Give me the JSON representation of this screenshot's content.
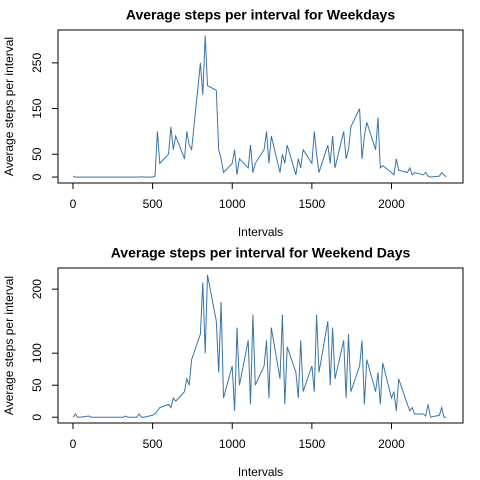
{
  "chart_data": [
    {
      "type": "line",
      "title": "Average steps per interval for Weekdays",
      "xlabel": "Intervals",
      "ylabel": "Average steps per interval",
      "color": "#3a75a8",
      "x": [
        0,
        15,
        30,
        45,
        100,
        115,
        130,
        145,
        200,
        215,
        230,
        245,
        300,
        315,
        330,
        345,
        400,
        415,
        430,
        445,
        500,
        515,
        530,
        545,
        600,
        615,
        630,
        645,
        700,
        715,
        730,
        745,
        800,
        815,
        830,
        845,
        900,
        915,
        930,
        945,
        1000,
        1015,
        1030,
        1045,
        1100,
        1115,
        1130,
        1145,
        1200,
        1215,
        1230,
        1245,
        1300,
        1315,
        1330,
        1345,
        1400,
        1415,
        1430,
        1445,
        1500,
        1515,
        1530,
        1545,
        1600,
        1615,
        1630,
        1645,
        1700,
        1715,
        1730,
        1745,
        1800,
        1815,
        1830,
        1845,
        1900,
        1915,
        1930,
        1945,
        2000,
        2015,
        2030,
        2045,
        2100,
        2115,
        2130,
        2145,
        2200,
        2215,
        2230,
        2245,
        2300,
        2315,
        2330,
        2345
      ],
      "values": [
        2,
        0,
        0,
        0,
        0,
        0,
        0,
        0,
        0,
        0,
        0,
        0,
        0,
        0,
        0,
        0,
        0,
        0,
        1,
        0,
        0,
        2,
        100,
        30,
        50,
        110,
        60,
        90,
        40,
        100,
        70,
        60,
        250,
        180,
        310,
        200,
        190,
        60,
        40,
        10,
        30,
        60,
        5,
        40,
        20,
        70,
        10,
        30,
        60,
        100,
        30,
        90,
        10,
        50,
        30,
        70,
        5,
        40,
        20,
        60,
        30,
        100,
        50,
        10,
        70,
        30,
        90,
        20,
        100,
        40,
        60,
        110,
        150,
        40,
        90,
        120,
        60,
        130,
        20,
        25,
        10,
        5,
        40,
        15,
        10,
        20,
        5,
        10,
        5,
        10,
        2,
        0,
        2,
        10,
        5,
        0
      ],
      "xlim": [
        -94,
        2449
      ],
      "xticks": [
        0,
        500,
        1000,
        1500,
        2000
      ],
      "ylim": [
        -13,
        322
      ],
      "yticks": [
        0,
        50,
        150,
        250
      ]
    },
    {
      "type": "line",
      "title": "Average steps per interval for Weekend Days",
      "xlabel": "Intervals",
      "ylabel": "Average steps per interval",
      "color": "#3a75a8",
      "x": [
        0,
        15,
        30,
        45,
        100,
        115,
        130,
        145,
        200,
        215,
        230,
        245,
        300,
        315,
        330,
        345,
        400,
        415,
        430,
        445,
        500,
        515,
        530,
        545,
        600,
        615,
        630,
        645,
        700,
        715,
        730,
        745,
        800,
        815,
        830,
        845,
        900,
        915,
        930,
        945,
        1000,
        1015,
        1030,
        1045,
        1100,
        1115,
        1130,
        1145,
        1200,
        1215,
        1230,
        1245,
        1300,
        1315,
        1330,
        1345,
        1400,
        1415,
        1430,
        1445,
        1500,
        1515,
        1530,
        1545,
        1600,
        1615,
        1630,
        1645,
        1700,
        1715,
        1730,
        1745,
        1800,
        1815,
        1830,
        1845,
        1900,
        1915,
        1930,
        1945,
        2000,
        2015,
        2030,
        2045,
        2100,
        2115,
        2130,
        2145,
        2200,
        2215,
        2230,
        2245,
        2300,
        2315,
        2330,
        2345
      ],
      "values": [
        0,
        5,
        0,
        0,
        2,
        0,
        0,
        0,
        0,
        0,
        0,
        0,
        0,
        0,
        2,
        0,
        0,
        5,
        0,
        0,
        3,
        5,
        10,
        15,
        20,
        15,
        30,
        25,
        40,
        60,
        50,
        90,
        130,
        210,
        100,
        222,
        150,
        70,
        180,
        30,
        80,
        10,
        140,
        50,
        120,
        20,
        160,
        50,
        80,
        120,
        30,
        140,
        60,
        160,
        20,
        110,
        70,
        30,
        120,
        40,
        80,
        40,
        160,
        70,
        150,
        50,
        140,
        60,
        120,
        30,
        130,
        40,
        80,
        120,
        20,
        90,
        40,
        70,
        20,
        85,
        30,
        40,
        10,
        60,
        20,
        10,
        15,
        5,
        5,
        2,
        20,
        0,
        3,
        15,
        0,
        0
      ],
      "xlim": [
        -94,
        2449
      ],
      "xticks": [
        0,
        500,
        1000,
        1500,
        2000
      ],
      "ylim": [
        -9,
        233
      ],
      "yticks": [
        0,
        50,
        100,
        200
      ]
    }
  ]
}
